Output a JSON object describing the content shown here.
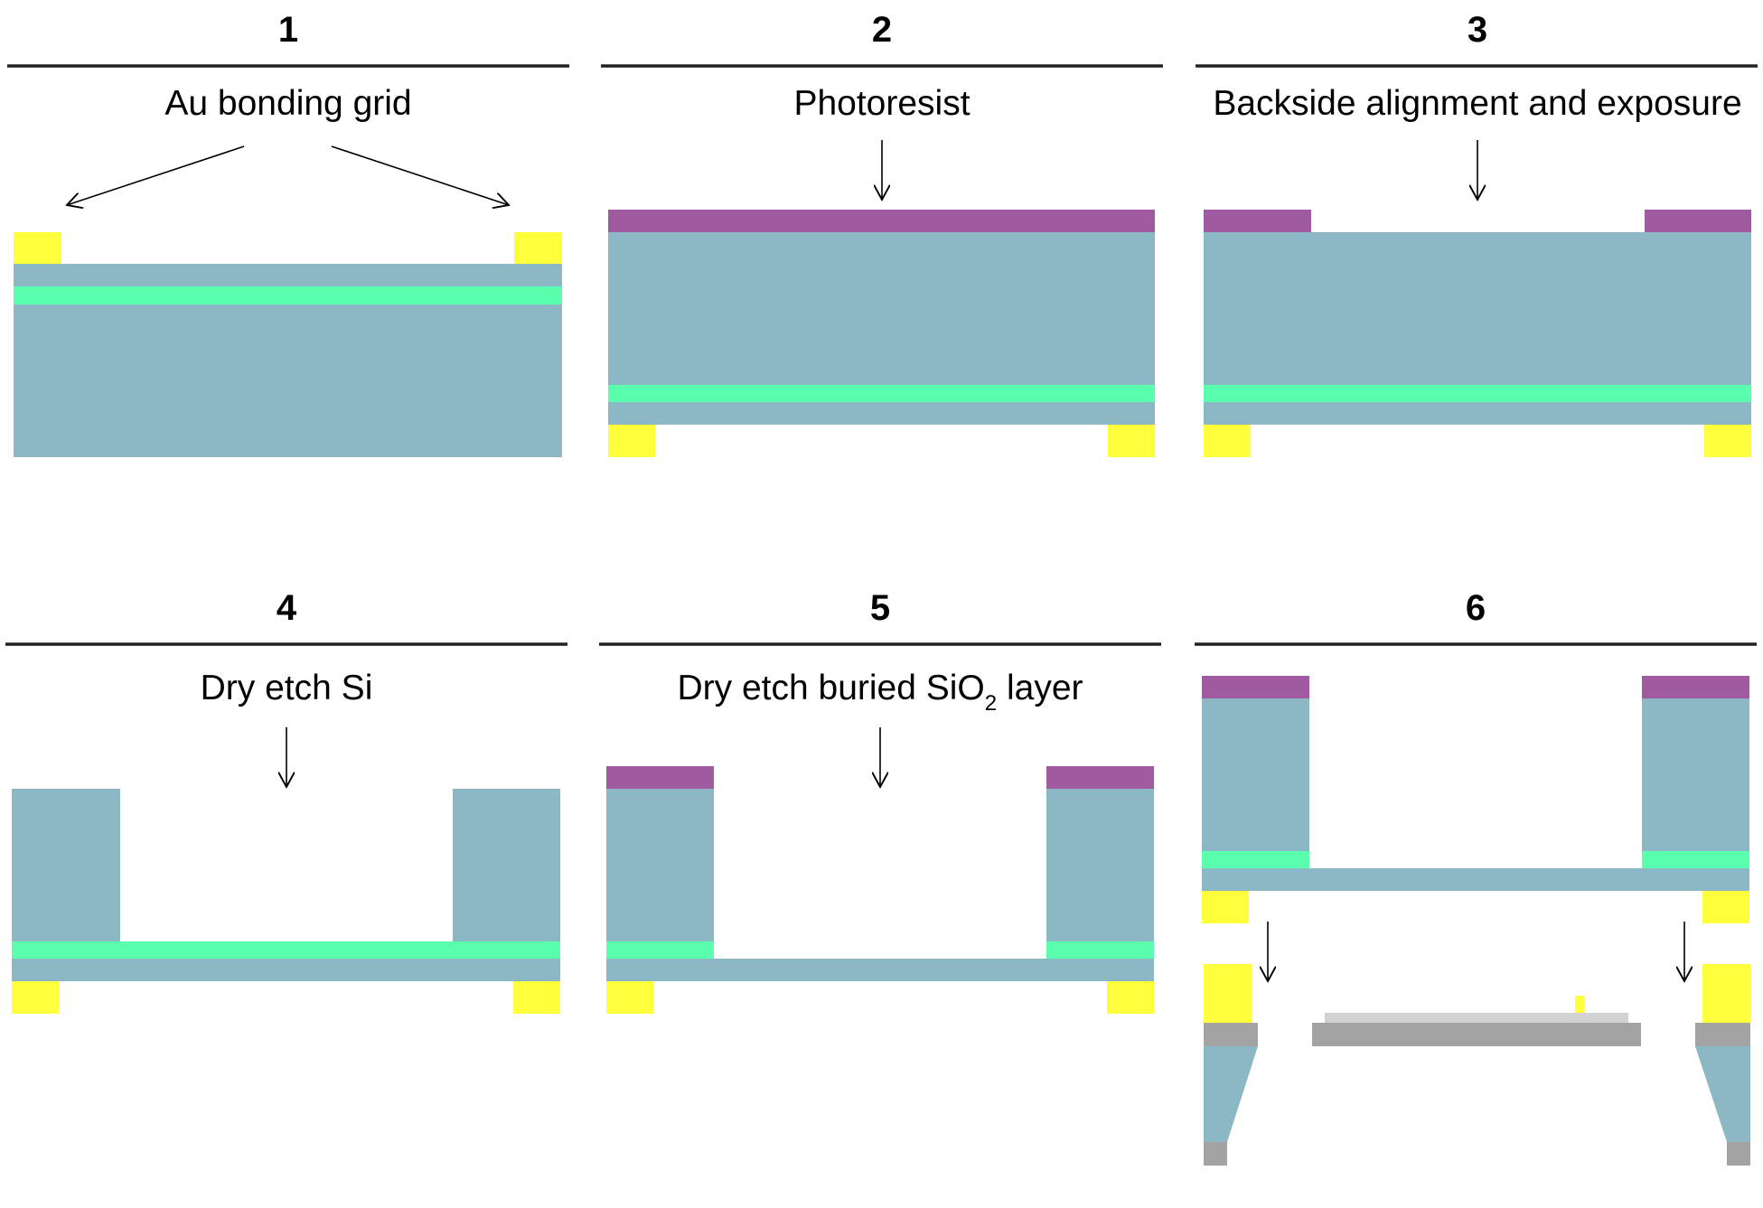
{
  "panels": [
    {
      "number": "1",
      "caption": "Au bonding grid"
    },
    {
      "number": "2",
      "caption": "Photoresist"
    },
    {
      "number": "3",
      "caption": "Backside alignment and exposure"
    },
    {
      "number": "4",
      "caption": "Dry etch Si"
    },
    {
      "number": "5",
      "caption_prefix": "Dry etch buried SiO",
      "caption_subscript": "2",
      "caption_suffix": " layer"
    },
    {
      "number": "6",
      "caption": ""
    }
  ],
  "colors": {
    "silicon": "#8cb8c6",
    "oxide": "#5affae",
    "gold": "#ffff3c",
    "photoresist": "#a05aa0",
    "grey_dark": "#a3a3a3",
    "grey_light": "#d2d2d2",
    "line": "#000000"
  }
}
